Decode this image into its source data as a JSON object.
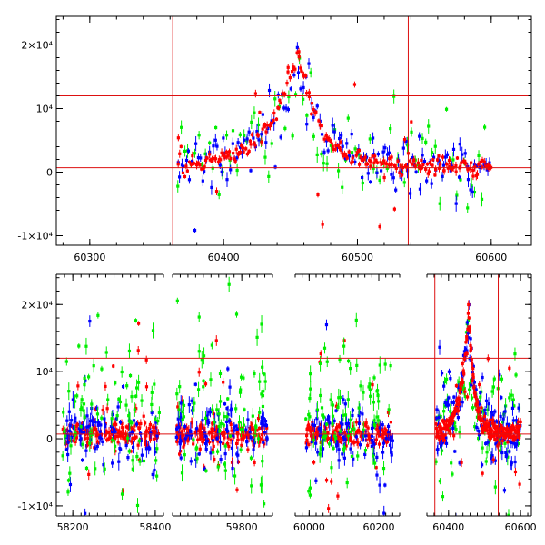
{
  "colors": {
    "red": "#ff0000",
    "green": "#00ee00",
    "blue": "#0000ff",
    "frame": "#000000",
    "guide": "#dd1111"
  },
  "chart_data": [
    {
      "type": "scatter",
      "title": "",
      "xlabel": "",
      "ylabel": "",
      "xlim": [
        60275,
        60630
      ],
      "ylim": [
        -11500,
        24500
      ],
      "x_ticks": [
        60300,
        60400,
        60500,
        60600
      ],
      "x_tick_labels": [
        "60300",
        "60400",
        "60500",
        "60600"
      ],
      "y_ticks": [
        -10000,
        0,
        10000,
        20000
      ],
      "y_tick_labels": [
        "-1×10⁴",
        "0",
        "10⁴",
        "2×10⁴"
      ],
      "hlines": [
        12000,
        700
      ],
      "vlines": [
        60362,
        60538
      ],
      "series": [
        {
          "color": "red",
          "x_range": [
            60365,
            60600
          ],
          "baseline": 700,
          "peak_x": 60455,
          "peak_y": 18000
        },
        {
          "color": "blue",
          "x_range": [
            60365,
            60600
          ],
          "baseline": 700,
          "peak_x": 60455,
          "peak_y": 17000
        },
        {
          "color": "green",
          "x_range": [
            60365,
            60590
          ],
          "baseline": 1500,
          "peak_x": 60455,
          "peak_y": 14000
        }
      ]
    },
    {
      "type": "scatter",
      "title": "",
      "xlabel": "",
      "ylabel": "",
      "y_ticks": [
        -10000,
        0,
        10000,
        20000
      ],
      "y_tick_labels": [
        "-1×10⁴",
        "0",
        "10⁴",
        "2×10⁴"
      ],
      "ylim": [
        -11500,
        24500
      ],
      "hlines": [
        12000,
        700
      ],
      "segments": [
        {
          "xlim": [
            58160,
            58420
          ],
          "x_ticks": [
            58200,
            58400
          ],
          "x_tick_labels": [
            "58200",
            "58400"
          ],
          "x_range": [
            58175,
            58410
          ]
        },
        {
          "xlim": [
            59620,
            59880
          ],
          "x_ticks": [
            59800
          ],
          "x_tick_labels": [
            "59800"
          ],
          "x_range": [
            59630,
            59870
          ]
        },
        {
          "xlim": [
            59960,
            60260
          ],
          "x_ticks": [
            60000,
            60200
          ],
          "x_tick_labels": [
            "60000",
            "60200"
          ],
          "x_range": [
            59990,
            60240
          ]
        },
        {
          "xlim": [
            60340,
            60630
          ],
          "x_ticks": [
            60400,
            60600
          ],
          "x_tick_labels": [
            "60400",
            "60600"
          ],
          "x_range": [
            60365,
            60600
          ],
          "vlines": [
            60362,
            60538
          ],
          "flare": true
        }
      ]
    }
  ]
}
